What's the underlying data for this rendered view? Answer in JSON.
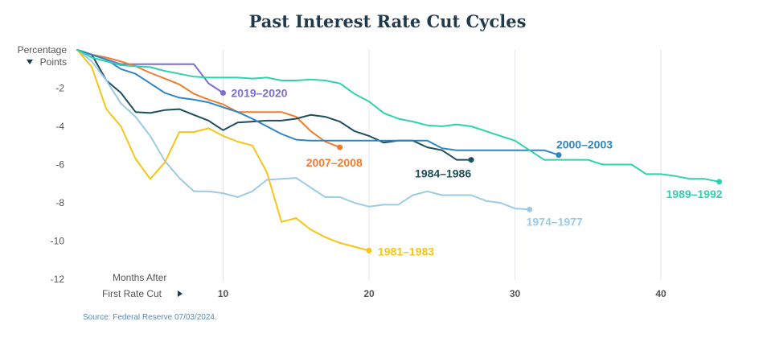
{
  "chart_data": {
    "type": "line",
    "title": "Past Interest Rate Cut Cycles",
    "ylabel": [
      "Percentage",
      "Points"
    ],
    "xlabel": [
      "Months After",
      "First Rate Cut"
    ],
    "xlim": [
      0,
      44
    ],
    "ylim": [
      -12,
      0
    ],
    "xticks": [
      10,
      20,
      30,
      40
    ],
    "yticks": [
      -2,
      -4,
      -6,
      -8,
      -10,
      -12
    ],
    "grid": "vertical",
    "source": "Source: Federal Reserve 07/03/2024.",
    "series": [
      {
        "name": "2019–2020",
        "color": "#7b6fd0",
        "x": [
          0,
          1,
          2,
          3,
          4,
          5,
          6,
          7,
          8,
          9,
          10
        ],
        "y": [
          0,
          -0.25,
          -0.5,
          -0.75,
          -0.75,
          -0.75,
          -0.75,
          -0.75,
          -0.75,
          -1.75,
          -2.25
        ]
      },
      {
        "name": "2007–2008",
        "color": "#f07c2e",
        "x": [
          0,
          1,
          2,
          3,
          4,
          5,
          6,
          7,
          8,
          9,
          10,
          11,
          12,
          13,
          14,
          15,
          16,
          17,
          18
        ],
        "y": [
          0,
          -0.25,
          -0.4,
          -0.6,
          -0.85,
          -1.2,
          -1.5,
          -1.8,
          -2.3,
          -2.6,
          -2.85,
          -3.25,
          -3.25,
          -3.25,
          -3.25,
          -3.5,
          -4.25,
          -4.8,
          -5.1
        ]
      },
      {
        "name": "1984–1986",
        "color": "#1f4e5f",
        "x": [
          0,
          1,
          2,
          3,
          4,
          5,
          6,
          7,
          8,
          9,
          10,
          11,
          12,
          13,
          14,
          15,
          16,
          17,
          18,
          19,
          20,
          21,
          22,
          23,
          24,
          25,
          26,
          27
        ],
        "y": [
          0,
          -0.25,
          -1.6,
          -2.25,
          -3.25,
          -3.3,
          -3.15,
          -3.1,
          -3.4,
          -3.7,
          -4.2,
          -3.8,
          -3.75,
          -3.7,
          -3.7,
          -3.6,
          -3.4,
          -3.5,
          -3.75,
          -4.25,
          -4.5,
          -4.85,
          -4.75,
          -4.75,
          -5.1,
          -5.25,
          -5.75,
          -5.75
        ]
      },
      {
        "name": "2000–2003",
        "color": "#2f86c6",
        "x": [
          0,
          1,
          2,
          3,
          4,
          5,
          6,
          7,
          8,
          9,
          10,
          11,
          12,
          13,
          14,
          15,
          16,
          17,
          18,
          19,
          20,
          21,
          22,
          23,
          24,
          25,
          26,
          27,
          28,
          29,
          30,
          31,
          32,
          33
        ],
        "y": [
          0,
          -0.25,
          -0.5,
          -1.0,
          -1.25,
          -1.75,
          -2.25,
          -2.5,
          -2.6,
          -2.75,
          -3.0,
          -3.25,
          -3.6,
          -4.0,
          -4.4,
          -4.7,
          -4.75,
          -4.75,
          -4.75,
          -4.75,
          -4.75,
          -4.75,
          -4.75,
          -4.75,
          -4.75,
          -5.15,
          -5.25,
          -5.25,
          -5.25,
          -5.25,
          -5.25,
          -5.25,
          -5.25,
          -5.5
        ]
      },
      {
        "name": "1974–1977",
        "color": "#9ccbe6",
        "x": [
          0,
          1,
          2,
          3,
          4,
          5,
          6,
          7,
          8,
          9,
          10,
          11,
          12,
          13,
          14,
          15,
          16,
          17,
          18,
          19,
          20,
          21,
          22,
          23,
          24,
          25,
          26,
          27,
          28,
          29,
          30,
          31
        ],
        "y": [
          0,
          -0.6,
          -1.6,
          -2.8,
          -3.5,
          -4.5,
          -5.8,
          -6.7,
          -7.4,
          -7.4,
          -7.5,
          -7.7,
          -7.4,
          -6.8,
          -6.75,
          -6.7,
          -7.2,
          -7.7,
          -7.7,
          -8.0,
          -8.2,
          -8.1,
          -8.1,
          -7.6,
          -7.4,
          -7.6,
          -7.6,
          -7.6,
          -7.9,
          -8.0,
          -8.3,
          -8.35
        ]
      },
      {
        "name": "1981–1983",
        "color": "#f5c518",
        "x": [
          0,
          1,
          2,
          3,
          4,
          5,
          6,
          7,
          8,
          9,
          10,
          11,
          12,
          13,
          14,
          15,
          16,
          17,
          18,
          19,
          20
        ],
        "y": [
          0,
          -0.9,
          -3.1,
          -4.0,
          -5.7,
          -6.75,
          -5.9,
          -4.3,
          -4.3,
          -4.1,
          -4.5,
          -4.8,
          -5.0,
          -6.4,
          -9.0,
          -8.8,
          -9.4,
          -9.8,
          -10.1,
          -10.3,
          -10.5
        ]
      },
      {
        "name": "1989–1992",
        "color": "#2ed3ae",
        "x": [
          0,
          1,
          2,
          3,
          4,
          5,
          6,
          7,
          8,
          9,
          10,
          11,
          12,
          13,
          14,
          15,
          16,
          17,
          18,
          19,
          20,
          21,
          22,
          23,
          24,
          25,
          26,
          27,
          28,
          29,
          30,
          31,
          32,
          33,
          34,
          35,
          36,
          37,
          38,
          39,
          40,
          41,
          42,
          43,
          44
        ],
        "y": [
          0,
          -0.4,
          -0.6,
          -0.8,
          -0.85,
          -0.9,
          -1.1,
          -1.25,
          -1.4,
          -1.45,
          -1.45,
          -1.45,
          -1.5,
          -1.45,
          -1.6,
          -1.6,
          -1.55,
          -1.6,
          -1.75,
          -2.3,
          -2.7,
          -3.3,
          -3.6,
          -3.75,
          -3.95,
          -4.0,
          -3.9,
          -4.0,
          -4.25,
          -4.5,
          -4.75,
          -5.25,
          -5.75,
          -5.75,
          -5.75,
          -5.75,
          -6.0,
          -6.0,
          -6.0,
          -6.5,
          -6.5,
          -6.6,
          -6.75,
          -6.75,
          -6.9
        ]
      }
    ]
  }
}
